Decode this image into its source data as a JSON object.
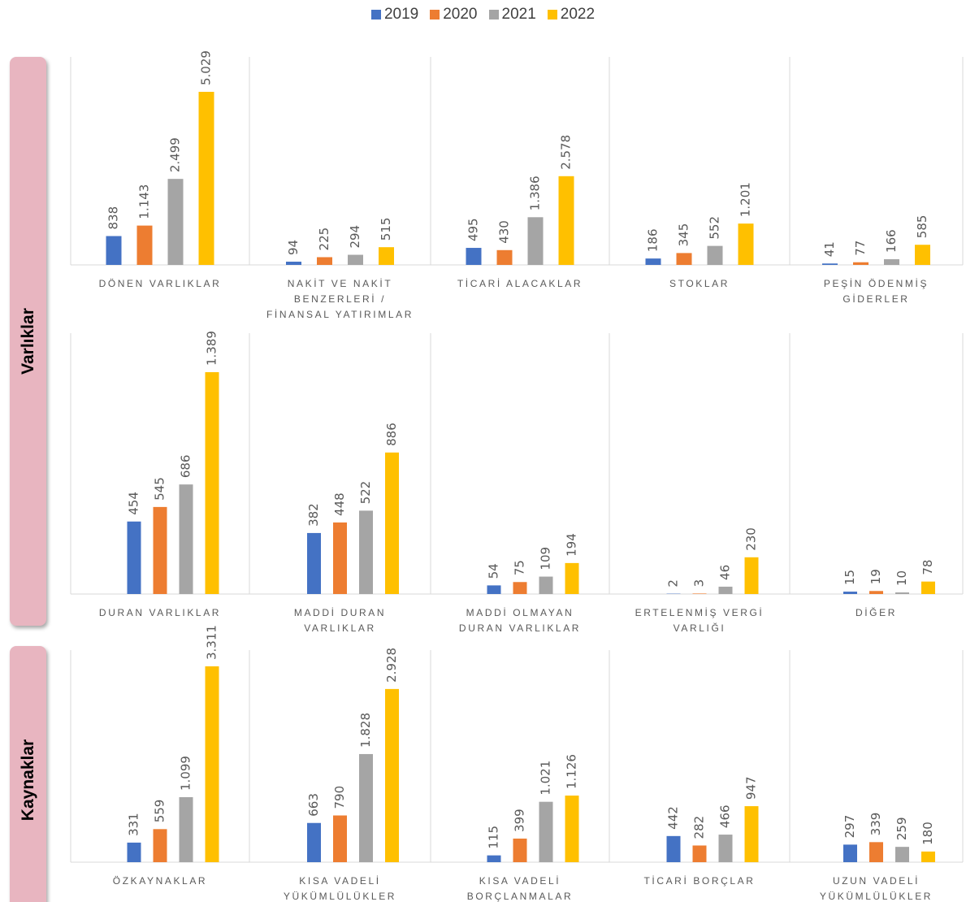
{
  "chart_data": {
    "type": "bar",
    "series": [
      {
        "name": "2019",
        "color": "#4472c4"
      },
      {
        "name": "2020",
        "color": "#ed7d31"
      },
      {
        "name": "2021",
        "color": "#a5a5a5"
      },
      {
        "name": "2022",
        "color": "#ffc000"
      }
    ],
    "sections": [
      {
        "label": "Varlıklar",
        "rows": [
          {
            "categories": [
              "DÖNEN VARLIKLAR",
              "NAKİT VE NAKİT\nBENZERLERİ /\nFİNANSAL YATIRIMLAR",
              "TİCARİ ALACAKLAR",
              "STOKLAR",
              "PEŞİN ÖDENMİŞ\nGİDERLER"
            ],
            "series": [
              {
                "values": [
                  838,
                  94,
                  495,
                  186,
                  41
                ],
                "value_labels": [
                  "838",
                  "94",
                  "495",
                  "186",
                  "41"
                ]
              },
              {
                "values": [
                  1143,
                  225,
                  430,
                  345,
                  77
                ],
                "value_labels": [
                  "1.143",
                  "225",
                  "430",
                  "345",
                  "77"
                ]
              },
              {
                "values": [
                  2499,
                  294,
                  1386,
                  552,
                  166
                ],
                "value_labels": [
                  "2.499",
                  "294",
                  "1.386",
                  "552",
                  "166"
                ]
              },
              {
                "values": [
                  5029,
                  515,
                  2578,
                  1201,
                  585
                ],
                "value_labels": [
                  "5.029",
                  "515",
                  "2.578",
                  "1.201",
                  "585"
                ]
              }
            ]
          },
          {
            "categories": [
              "DURAN VARLIKLAR",
              "MADDİ DURAN\nVARLIKLAR",
              "MADDİ OLMAYAN\nDURAN VARLIKLAR",
              "ERTELENMİŞ VERGİ\nVARLIĞI",
              "DİĞER"
            ],
            "series": [
              {
                "values": [
                  454,
                  382,
                  54,
                  2,
                  15
                ],
                "value_labels": [
                  "454",
                  "382",
                  "54",
                  "2",
                  "15"
                ]
              },
              {
                "values": [
                  545,
                  448,
                  75,
                  3,
                  19
                ],
                "value_labels": [
                  "545",
                  "448",
                  "75",
                  "3",
                  "19"
                ]
              },
              {
                "values": [
                  686,
                  522,
                  109,
                  46,
                  10
                ],
                "value_labels": [
                  "686",
                  "522",
                  "109",
                  "46",
                  "10"
                ]
              },
              {
                "values": [
                  1389,
                  886,
                  194,
                  230,
                  78
                ],
                "value_labels": [
                  "1.389",
                  "886",
                  "194",
                  "230",
                  "78"
                ]
              }
            ]
          }
        ]
      },
      {
        "label": "Kaynaklar",
        "rows": [
          {
            "categories": [
              "ÖZKAYNAKLAR",
              "KISA VADELİ\nYÜKÜMLÜLÜKLER",
              "KISA VADELİ\nBORÇLANMALAR",
              "TİCARİ BORÇLAR",
              "UZUN VADELİ\nYÜKÜMLÜLÜKLER"
            ],
            "series": [
              {
                "values": [
                  331,
                  663,
                  115,
                  442,
                  297
                ],
                "value_labels": [
                  "331",
                  "663",
                  "115",
                  "442",
                  "297"
                ]
              },
              {
                "values": [
                  559,
                  790,
                  399,
                  282,
                  339
                ],
                "value_labels": [
                  "559",
                  "790",
                  "399",
                  "282",
                  "339"
                ]
              },
              {
                "values": [
                  1099,
                  1828,
                  1021,
                  466,
                  259
                ],
                "value_labels": [
                  "1.099",
                  "1.828",
                  "1.021",
                  "466",
                  "259"
                ]
              },
              {
                "values": [
                  3311,
                  2928,
                  1126,
                  947,
                  180
                ],
                "value_labels": [
                  "3.311",
                  "2.928",
                  "1.126",
                  "947",
                  "180"
                ]
              }
            ]
          }
        ]
      }
    ]
  }
}
